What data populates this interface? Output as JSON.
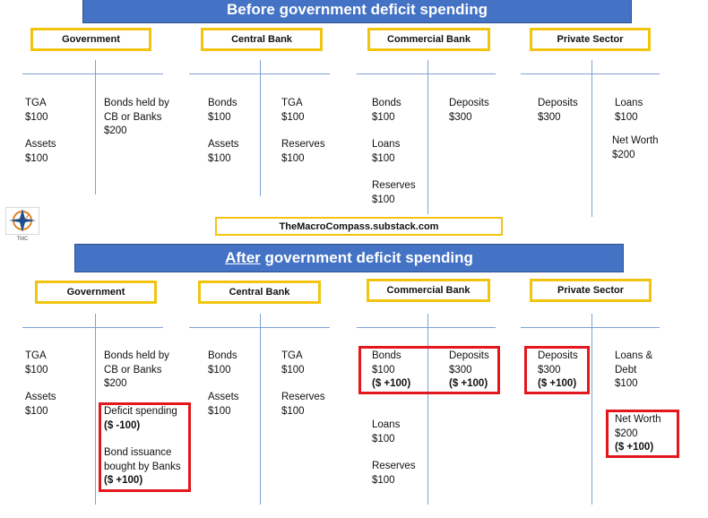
{
  "before": {
    "title": "Before government deficit spending",
    "labels": {
      "government": "Government",
      "central_bank": "Central Bank",
      "commercial_bank": "Commercial Bank",
      "private_sector": "Private Sector"
    },
    "gov": {
      "a1": "TGA",
      "a1v": "$100",
      "a2": "Assets",
      "a2v": "$100",
      "l1a": "Bonds held by",
      "l1b": "CB or Banks",
      "l1v": "$200"
    },
    "cb": {
      "a1": "Bonds",
      "a1v": "$100",
      "a2": "Assets",
      "a2v": "$100",
      "l1": "TGA",
      "l1v": "$100",
      "l2": "Reserves",
      "l2v": "$100"
    },
    "comm": {
      "a1": "Bonds",
      "a1v": "$100",
      "a2": "Loans",
      "a2v": "$100",
      "a3": "Reserves",
      "a3v": "$100",
      "l1": "Deposits",
      "l1v": "$300"
    },
    "priv": {
      "a1": "Deposits",
      "a1v": "$300",
      "l1": "Loans",
      "l1v": "$100",
      "l2": "Net Worth",
      "l2v": "$200"
    }
  },
  "watermark": "TheMacroCompass.substack.com",
  "logo_text": "TMC",
  "after": {
    "title_prefix": "After",
    "title_rest": " government deficit spending",
    "labels": {
      "government": "Government",
      "central_bank": "Central Bank",
      "commercial_bank": "Commercial Bank",
      "private_sector": "Private Sector"
    },
    "gov": {
      "a1": "TGA",
      "a1v": "$100",
      "a2": "Assets",
      "a2v": "$100",
      "l1a": "Bonds held by",
      "l1b": "CB or Banks",
      "l1v": "$200",
      "d1": "Deficit spending",
      "d1v": "($ -100)",
      "d2a": "Bond issuance",
      "d2b": "bought by Banks",
      "d2v": "($ +100)"
    },
    "cb": {
      "a1": "Bonds",
      "a1v": "$100",
      "a2": "Assets",
      "a2v": "$100",
      "l1": "TGA",
      "l1v": "$100",
      "l2": "Reserves",
      "l2v": "$100"
    },
    "comm": {
      "a1": "Bonds",
      "a1v": "$100",
      "a1c": "($ +100)",
      "a2": "Loans",
      "a2v": "$100",
      "a3": "Reserves",
      "a3v": "$100",
      "l1": "Deposits",
      "l1v": "$300",
      "l1c": "($ +100)"
    },
    "priv": {
      "a1": "Deposits",
      "a1v": "$300",
      "a1c": "($ +100)",
      "l1a": "Loans &",
      "l1b": "Debt",
      "l1v": "$100",
      "l2": "Net Worth",
      "l2v": "$200",
      "l2c": "($ +100)"
    }
  },
  "colors": {
    "banner": "#4472C4",
    "label_border": "#F2C40F",
    "highlight": "#E3171C",
    "t_lines": "#7fa0d6"
  }
}
